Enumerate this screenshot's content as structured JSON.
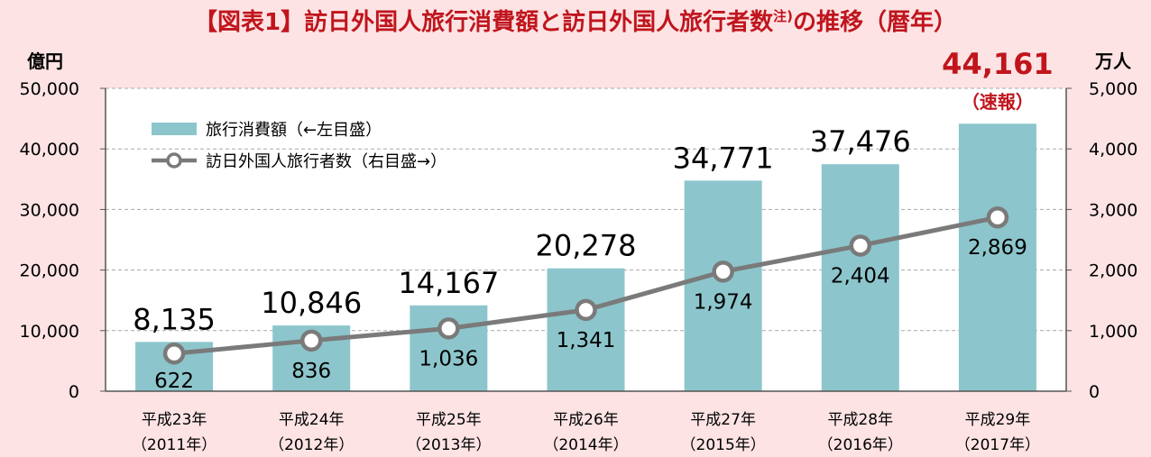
{
  "title": "【図表1】訪日外国人旅行消費額と訪日外国人旅行者数",
  "title_note": "注)",
  "title_suffix": "の推移（暦年）",
  "colors": {
    "title": "#c0151d",
    "bar": "#8cc6cc",
    "line": "#7a7a7a",
    "highlight": "#c0151d",
    "background": "#fde3e4",
    "plot_background": "#ffffff"
  },
  "chart_data": {
    "type": "bar",
    "categories": [
      [
        "平成23年",
        "（2011年）"
      ],
      [
        "平成24年",
        "（2012年）"
      ],
      [
        "平成25年",
        "（2013年）"
      ],
      [
        "平成26年",
        "（2014年）"
      ],
      [
        "平成27年",
        "（2015年）"
      ],
      [
        "平成28年",
        "（2016年）"
      ],
      [
        "平成29年",
        "（2017年）"
      ]
    ],
    "series": [
      {
        "name": "旅行消費額（←左目盛）",
        "type": "bar",
        "axis": "left",
        "values": [
          8135,
          10846,
          14167,
          20278,
          34771,
          37476,
          44161
        ],
        "labels": [
          "8,135",
          "10,846",
          "14,167",
          "20,278",
          "34,771",
          "37,476",
          "44,161"
        ]
      },
      {
        "name": "訪日外国人旅行者数（右目盛→）",
        "type": "line",
        "axis": "right",
        "values": [
          622,
          836,
          1036,
          1341,
          1974,
          2404,
          2869
        ],
        "labels": [
          "622",
          "836",
          "1,036",
          "1,341",
          "1,974",
          "2,404",
          "2,869"
        ]
      }
    ],
    "highlight_note": "（速報）",
    "y_left": {
      "unit": "億円",
      "range": [
        0,
        50000
      ],
      "ticks": [
        "0",
        "10,000",
        "20,000",
        "30,000",
        "40,000",
        "50,000"
      ]
    },
    "y_right": {
      "unit": "万人",
      "range": [
        0,
        5000
      ],
      "ticks": [
        "0",
        "1,000",
        "2,000",
        "3,000",
        "4,000",
        "5,000"
      ]
    },
    "grid": true,
    "legend_position": "top-left"
  }
}
